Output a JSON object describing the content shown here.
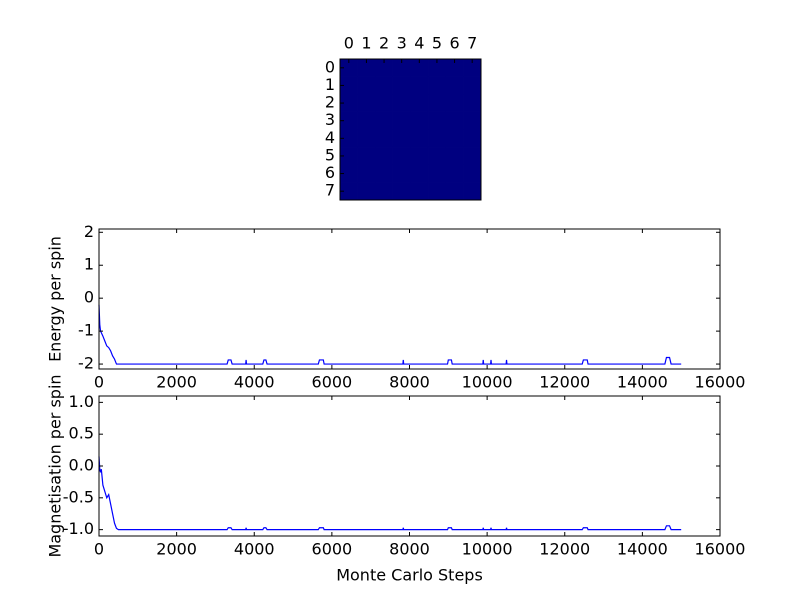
{
  "chart_data": [
    {
      "type": "heatmap",
      "color": "#000080",
      "xticks": [
        0,
        1,
        2,
        3,
        4,
        5,
        6,
        7
      ],
      "yticks": [
        0,
        1,
        2,
        3,
        4,
        5,
        6,
        7
      ],
      "xlim": [
        -0.5,
        7.5
      ],
      "ylim": [
        -0.5,
        7.5
      ],
      "y_inverted": true,
      "values": [
        [
          -1,
          -1,
          -1,
          -1,
          -1,
          -1,
          -1,
          -1
        ],
        [
          -1,
          -1,
          -1,
          -1,
          -1,
          -1,
          -1,
          -1
        ],
        [
          -1,
          -1,
          -1,
          -1,
          -1,
          -1,
          -1,
          -1
        ],
        [
          -1,
          -1,
          -1,
          -1,
          -1,
          -1,
          -1,
          -1
        ],
        [
          -1,
          -1,
          -1,
          -1,
          -1,
          -1,
          -1,
          -1
        ],
        [
          -1,
          -1,
          -1,
          -1,
          -1,
          -1,
          -1,
          -1
        ],
        [
          -1,
          -1,
          -1,
          -1,
          -1,
          -1,
          -1,
          -1
        ],
        [
          -1,
          -1,
          -1,
          -1,
          -1,
          -1,
          -1,
          -1
        ]
      ]
    },
    {
      "type": "line",
      "ylabel": "Energy per spin",
      "color": "#0000ff",
      "x": [
        0,
        10,
        20,
        40,
        60,
        100,
        150,
        200,
        250,
        300,
        350,
        400,
        450,
        500,
        3300,
        3330,
        3400,
        3430,
        3780,
        3790,
        3800,
        4220,
        4250,
        4300,
        4330,
        5650,
        5680,
        5780,
        5800,
        7830,
        7840,
        7850,
        8980,
        9000,
        9080,
        9100,
        9890,
        9900,
        9910,
        10090,
        10100,
        10110,
        10490,
        10500,
        10510,
        12450,
        12480,
        12580,
        12600,
        14580,
        14620,
        14700,
        14740,
        15000
      ],
      "values": [
        -0.2,
        -0.5,
        -0.8,
        -1.0,
        -1.05,
        -1.15,
        -1.3,
        -1.45,
        -1.5,
        -1.6,
        -1.75,
        -1.85,
        -2,
        -2,
        -2,
        -1.875,
        -1.875,
        -2,
        -2,
        -1.875,
        -2,
        -2,
        -1.875,
        -1.875,
        -2,
        -2,
        -1.875,
        -1.875,
        -2,
        -2,
        -1.875,
        -2,
        -2,
        -1.875,
        -1.875,
        -2,
        -2,
        -1.875,
        -2,
        -2,
        -1.875,
        -2,
        -2,
        -1.875,
        -2,
        -2,
        -1.875,
        -1.875,
        -2,
        -2,
        -1.8,
        -1.8,
        -2,
        -2
      ],
      "xlim": [
        0,
        16000
      ],
      "xticks": [
        0,
        2000,
        4000,
        6000,
        8000,
        10000,
        12000,
        14000,
        16000
      ],
      "ylim": [
        -2.15,
        2.1
      ],
      "yticks": [
        -2,
        -1,
        0,
        1,
        2
      ]
    },
    {
      "type": "line",
      "ylabel": "Magnetisation per spin",
      "xlabel": "Monte Carlo Steps",
      "color": "#0000ff",
      "x": [
        0,
        10,
        20,
        40,
        60,
        100,
        150,
        200,
        250,
        300,
        350,
        400,
        450,
        500,
        3300,
        3330,
        3400,
        3430,
        3780,
        3790,
        3800,
        4220,
        4250,
        4300,
        4330,
        5650,
        5680,
        5780,
        5800,
        7830,
        7840,
        7850,
        8980,
        9000,
        9080,
        9100,
        9890,
        9900,
        9910,
        10090,
        10100,
        10110,
        10490,
        10500,
        10510,
        12450,
        12480,
        12580,
        12600,
        14580,
        14620,
        14700,
        14740,
        15000
      ],
      "values": [
        0.15,
        0.05,
        -0.05,
        -0.1,
        -0.05,
        -0.3,
        -0.4,
        -0.5,
        -0.45,
        -0.6,
        -0.75,
        -0.9,
        -0.98,
        -1,
        -1,
        -0.97,
        -0.97,
        -1,
        -1,
        -0.97,
        -1,
        -1,
        -0.97,
        -0.97,
        -1,
        -1,
        -0.97,
        -0.97,
        -1,
        -1,
        -0.97,
        -1,
        -1,
        -0.97,
        -0.97,
        -1,
        -1,
        -0.97,
        -1,
        -1,
        -0.97,
        -1,
        -1,
        -0.97,
        -1,
        -1,
        -0.97,
        -0.97,
        -1,
        -1,
        -0.94,
        -0.94,
        -1,
        -1
      ],
      "xlim": [
        0,
        16000
      ],
      "xticks": [
        0,
        2000,
        4000,
        6000,
        8000,
        10000,
        12000,
        14000,
        16000
      ],
      "ylim": [
        -1.1,
        1.1
      ],
      "yticks": [
        {
          "value": -1,
          "label": "-1.0"
        },
        {
          "value": -0.5,
          "label": "-0.5"
        },
        {
          "value": 0,
          "label": "0.0"
        },
        {
          "value": 0.5,
          "label": "0.5"
        },
        {
          "value": 1,
          "label": "1.0"
        }
      ]
    }
  ]
}
